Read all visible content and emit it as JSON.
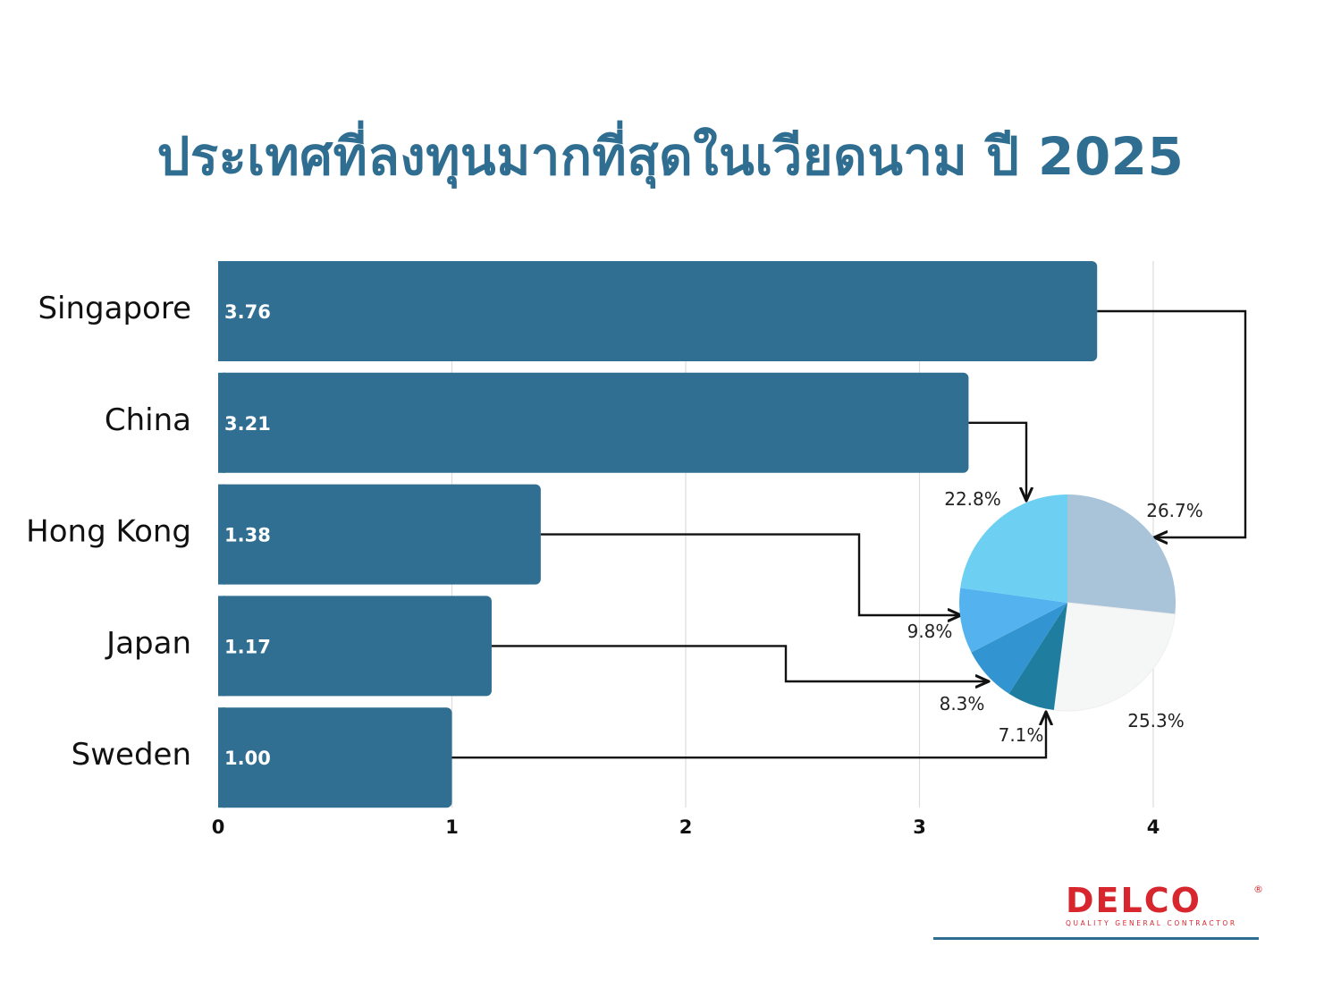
{
  "title": "ประเทศที่ลงทุนมากที่สุดในเวียดนาม ปี 2025",
  "chart_data": [
    {
      "type": "bar",
      "orientation": "horizontal",
      "categories": [
        "Singapore",
        "China",
        "Hong Kong",
        "Japan",
        "Sweden"
      ],
      "values": [
        3.76,
        3.21,
        1.38,
        1.17,
        1.0
      ],
      "value_labels": [
        "3.76",
        "3.21",
        "1.38",
        "1.17",
        "1.00"
      ],
      "xlim": [
        0,
        4
      ],
      "x_ticks": [
        "0",
        "1",
        "2",
        "3",
        "4"
      ],
      "grid": true,
      "bar_color": "#316f92"
    },
    {
      "type": "pie",
      "slices": [
        {
          "label": "26.7%",
          "value": 26.7,
          "color": "#a9c3d9"
        },
        {
          "label": "25.3%",
          "value": 25.3,
          "color": "#f5f6f6"
        },
        {
          "label": "7.1%",
          "value": 7.1,
          "color": "#1f7e9f"
        },
        {
          "label": "8.3%",
          "value": 8.3,
          "color": "#3294d1"
        },
        {
          "label": "9.8%",
          "value": 9.8,
          "color": "#54b2ee"
        },
        {
          "label": "22.8%",
          "value": 22.8,
          "color": "#6dd0f3"
        }
      ],
      "links": [
        {
          "from": "Singapore",
          "to": "26.7%"
        },
        {
          "from": "China",
          "to": "22.8%"
        },
        {
          "from": "Hong Kong",
          "to": "9.8%"
        },
        {
          "from": "Japan",
          "to": "8.3%"
        },
        {
          "from": "Sweden",
          "to": "7.1%"
        }
      ]
    }
  ],
  "logo": {
    "name": "DELCO",
    "tagline": "QUALITY GENERAL CONTRACTOR",
    "registered": "®",
    "color": "#d7262e"
  }
}
